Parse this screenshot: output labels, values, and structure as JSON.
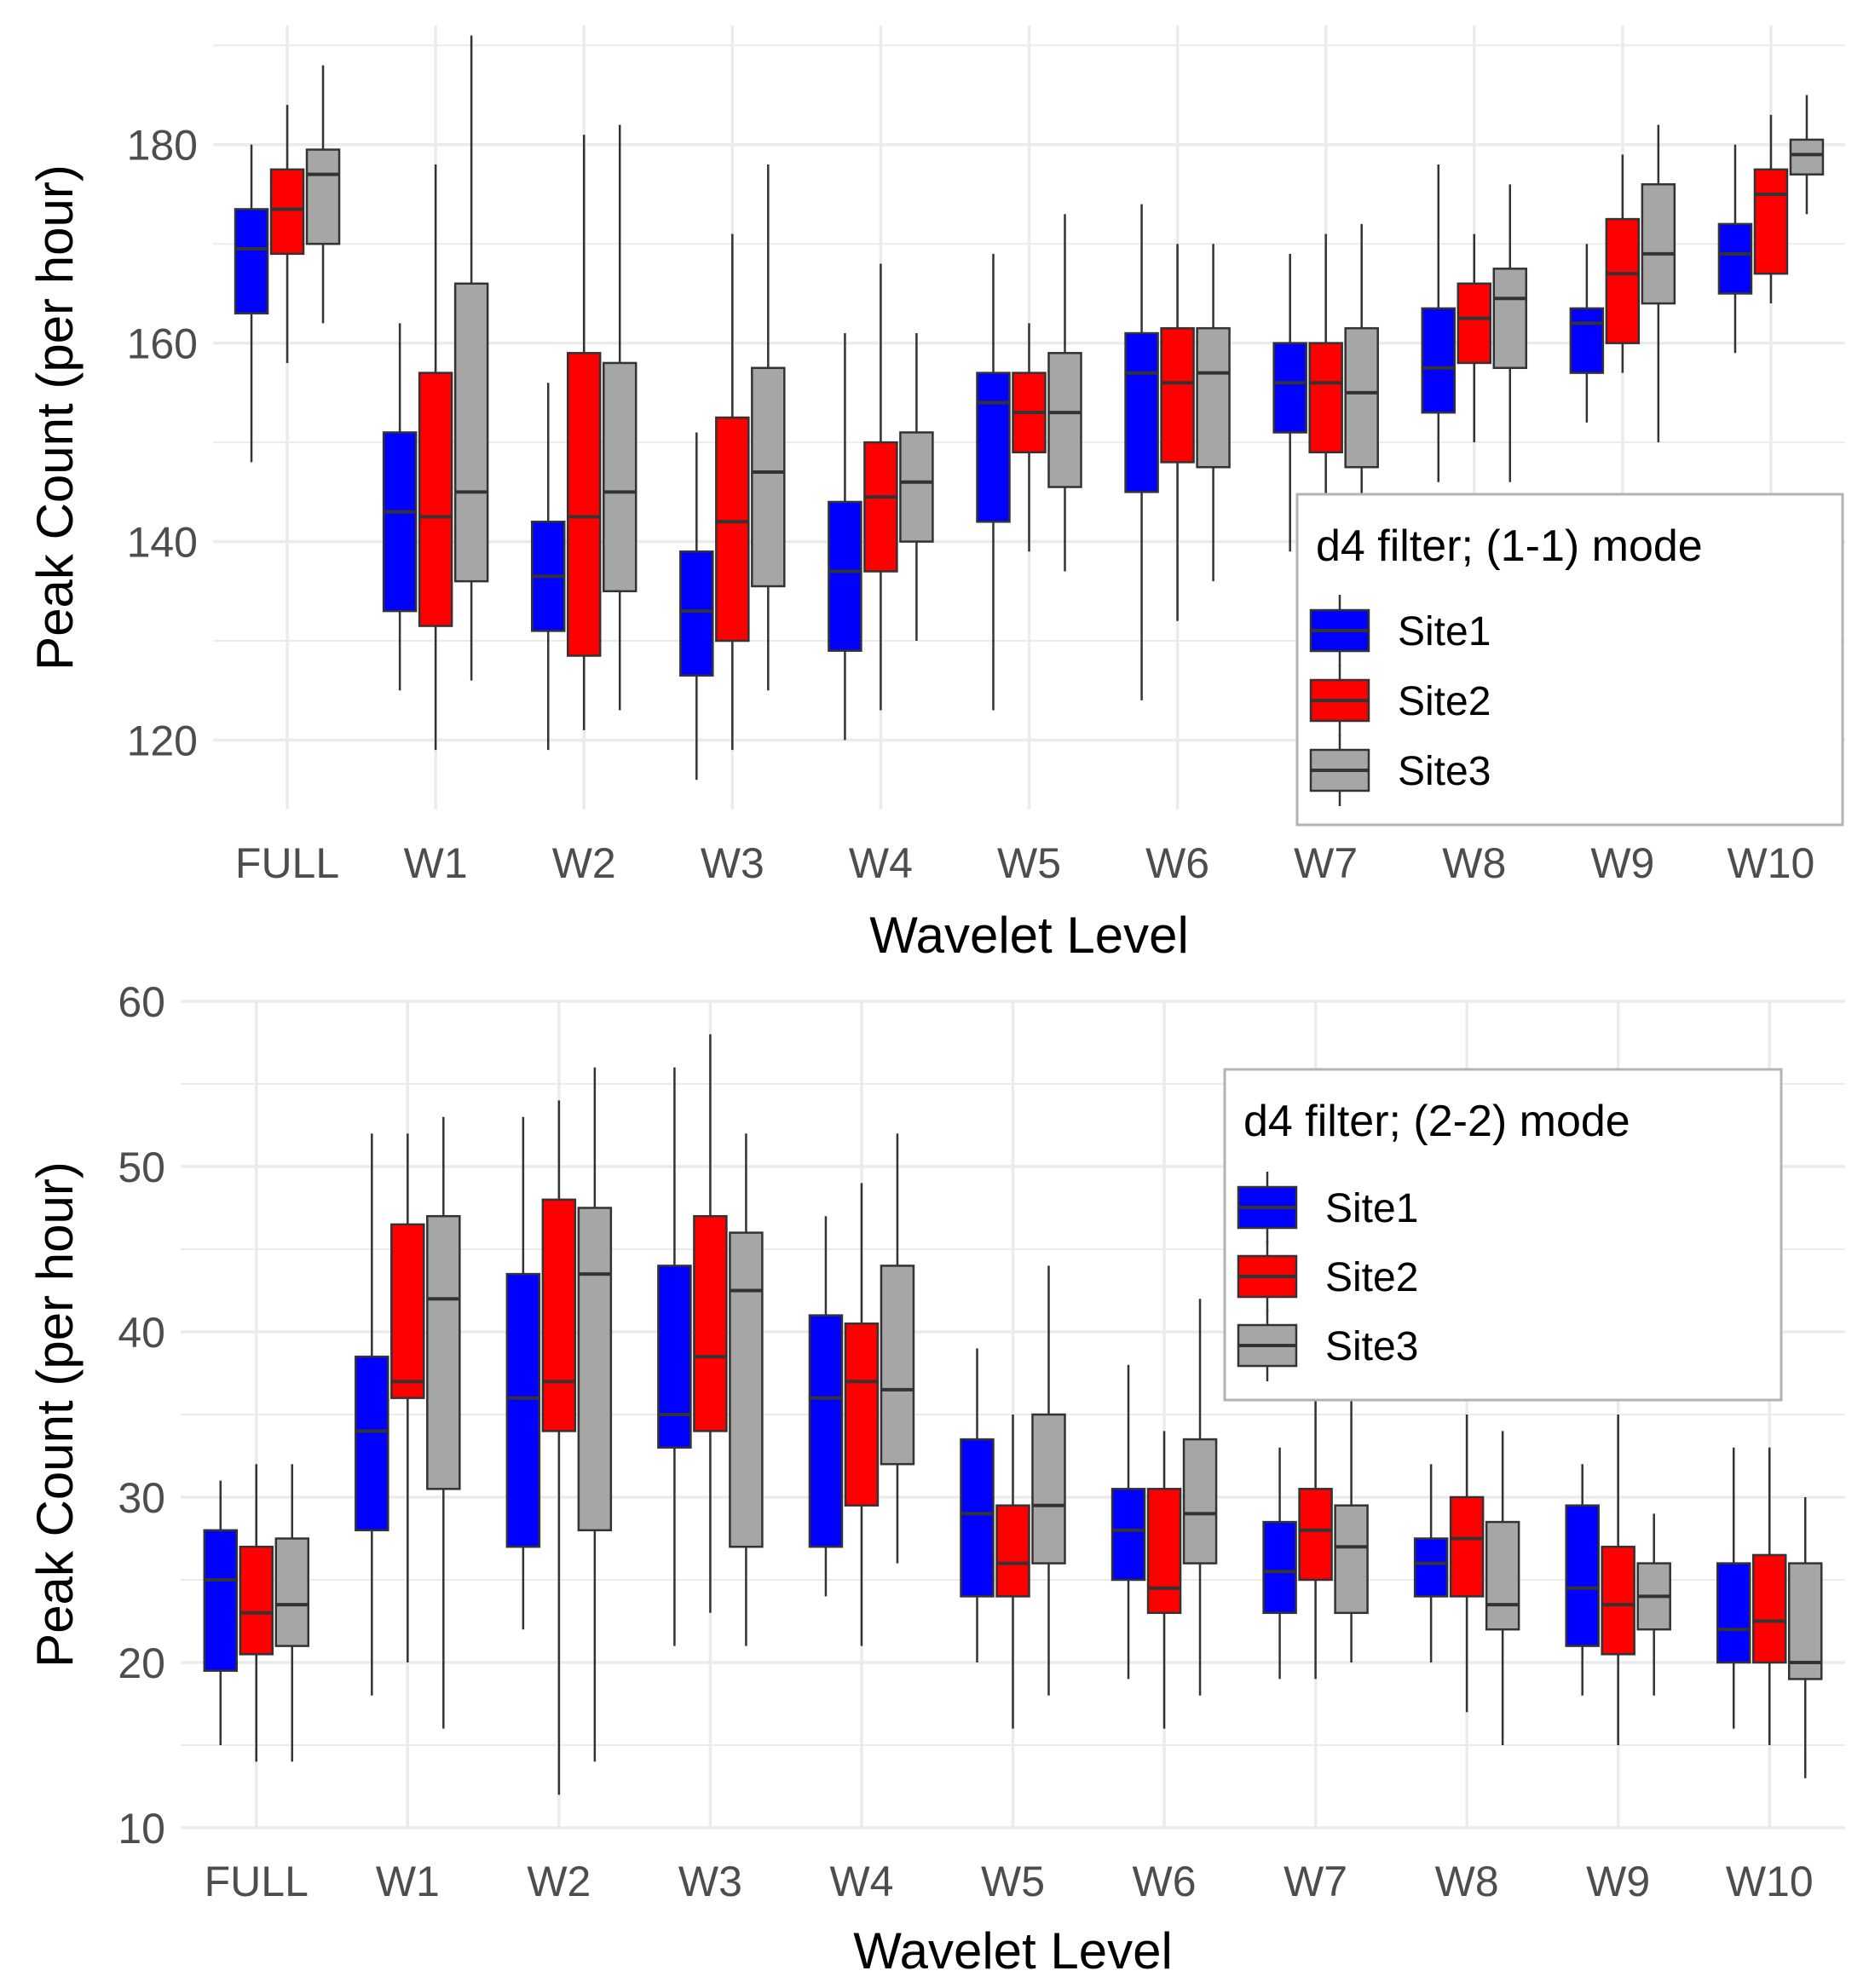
{
  "colors": {
    "Site1": "#0000ff",
    "Site2": "#ff0000",
    "Site3": "#a6a6a6",
    "grid": "#ebebeb",
    "median": "#333333",
    "whisker": "#333333"
  },
  "chart_data": [
    {
      "type": "box",
      "xlabel": "Wavelet Level",
      "ylabel": "Peak Count (per hour)",
      "ylim": [
        113,
        192
      ],
      "yticks": [
        120,
        140,
        160,
        180
      ],
      "grid": true,
      "legend_title": "d4 filter; (1-1) mode",
      "legend_position": "right",
      "categories": [
        "FULL",
        "W1",
        "W2",
        "W3",
        "W4",
        "W5",
        "W6",
        "W7",
        "W8",
        "W9",
        "W10"
      ],
      "series": [
        {
          "name": "Site1",
          "boxes": [
            {
              "min": 148,
              "q1": 163,
              "median": 169.5,
              "q3": 173.5,
              "max": 180
            },
            {
              "min": 125,
              "q1": 133,
              "median": 143,
              "q3": 151,
              "max": 162
            },
            {
              "min": 119,
              "q1": 131,
              "median": 136.5,
              "q3": 142,
              "max": 156
            },
            {
              "min": 116,
              "q1": 126.5,
              "median": 133,
              "q3": 139,
              "max": 151
            },
            {
              "min": 120,
              "q1": 129,
              "median": 137,
              "q3": 144,
              "max": 161
            },
            {
              "min": 123,
              "q1": 142,
              "median": 154,
              "q3": 157,
              "max": 169
            },
            {
              "min": 124,
              "q1": 145,
              "median": 157,
              "q3": 161,
              "max": 174
            },
            {
              "min": 139,
              "q1": 151,
              "median": 156,
              "q3": 160,
              "max": 169
            },
            {
              "min": 146,
              "q1": 153,
              "median": 157.5,
              "q3": 163.5,
              "max": 178
            },
            {
              "min": 152,
              "q1": 157,
              "median": 162,
              "q3": 163.5,
              "max": 170
            },
            {
              "min": 159,
              "q1": 165,
              "median": 169,
              "q3": 172,
              "max": 180
            }
          ]
        },
        {
          "name": "Site2",
          "boxes": [
            {
              "min": 158,
              "q1": 169,
              "median": 173.5,
              "q3": 177.5,
              "max": 184
            },
            {
              "min": 119,
              "q1": 131.5,
              "median": 142.5,
              "q3": 157,
              "max": 178
            },
            {
              "min": 121,
              "q1": 128.5,
              "median": 142.5,
              "q3": 159,
              "max": 181
            },
            {
              "min": 119,
              "q1": 130,
              "median": 142,
              "q3": 152.5,
              "max": 171
            },
            {
              "min": 123,
              "q1": 137,
              "median": 144.5,
              "q3": 150,
              "max": 168
            },
            {
              "min": 139,
              "q1": 149,
              "median": 153,
              "q3": 157,
              "max": 162
            },
            {
              "min": 132,
              "q1": 148,
              "median": 156,
              "q3": 161.5,
              "max": 170
            },
            {
              "min": 141,
              "q1": 149,
              "median": 156,
              "q3": 160,
              "max": 171
            },
            {
              "min": 150,
              "q1": 158,
              "median": 162.5,
              "q3": 166,
              "max": 171
            },
            {
              "min": 157,
              "q1": 160,
              "median": 167,
              "q3": 172.5,
              "max": 179
            },
            {
              "min": 164,
              "q1": 167,
              "median": 175,
              "q3": 177.5,
              "max": 183
            }
          ]
        },
        {
          "name": "Site3",
          "boxes": [
            {
              "min": 162,
              "q1": 170,
              "median": 177,
              "q3": 179.5,
              "max": 188
            },
            {
              "min": 126,
              "q1": 136,
              "median": 145,
              "q3": 166,
              "max": 191
            },
            {
              "min": 123,
              "q1": 135,
              "median": 145,
              "q3": 158,
              "max": 182
            },
            {
              "min": 125,
              "q1": 135.5,
              "median": 147,
              "q3": 157.5,
              "max": 178
            },
            {
              "min": 130,
              "q1": 140,
              "median": 146,
              "q3": 151,
              "max": 161
            },
            {
              "min": 137,
              "q1": 145.5,
              "median": 153,
              "q3": 159,
              "max": 173
            },
            {
              "min": 136,
              "q1": 147.5,
              "median": 157,
              "q3": 161.5,
              "max": 170
            },
            {
              "min": 140,
              "q1": 147.5,
              "median": 155,
              "q3": 161.5,
              "max": 172
            },
            {
              "min": 146,
              "q1": 157.5,
              "median": 164.5,
              "q3": 167.5,
              "max": 176
            },
            {
              "min": 150,
              "q1": 164,
              "median": 169,
              "q3": 176,
              "max": 182
            },
            {
              "min": 173,
              "q1": 177,
              "median": 179,
              "q3": 180.5,
              "max": 185
            }
          ]
        }
      ]
    },
    {
      "type": "box",
      "xlabel": "Wavelet Level",
      "ylabel": "Peak Count (per hour)",
      "ylim": [
        10,
        60
      ],
      "yticks": [
        10,
        20,
        30,
        40,
        50,
        60
      ],
      "grid": true,
      "legend_title": "d4 filter; (2-2) mode",
      "legend_position": "top-right",
      "categories": [
        "FULL",
        "W1",
        "W2",
        "W3",
        "W4",
        "W5",
        "W6",
        "W7",
        "W8",
        "W9",
        "W10"
      ],
      "series": [
        {
          "name": "Site1",
          "boxes": [
            {
              "min": 15,
              "q1": 19.5,
              "median": 25,
              "q3": 28,
              "max": 31
            },
            {
              "min": 18,
              "q1": 28,
              "median": 34,
              "q3": 38.5,
              "max": 52
            },
            {
              "min": 22,
              "q1": 27,
              "median": 36,
              "q3": 43.5,
              "max": 53
            },
            {
              "min": 21,
              "q1": 33,
              "median": 35,
              "q3": 44,
              "max": 56
            },
            {
              "min": 24,
              "q1": 27,
              "median": 36,
              "q3": 41,
              "max": 47
            },
            {
              "min": 20,
              "q1": 24,
              "median": 29,
              "q3": 33.5,
              "max": 39
            },
            {
              "min": 19,
              "q1": 25,
              "median": 28,
              "q3": 30.5,
              "max": 38
            },
            {
              "min": 19,
              "q1": 23,
              "median": 25.5,
              "q3": 28.5,
              "max": 33
            },
            {
              "min": 20,
              "q1": 24,
              "median": 26,
              "q3": 27.5,
              "max": 32
            },
            {
              "min": 18,
              "q1": 21,
              "median": 24.5,
              "q3": 29.5,
              "max": 32
            },
            {
              "min": 16,
              "q1": 20,
              "median": 22,
              "q3": 26,
              "max": 33
            }
          ]
        },
        {
          "name": "Site2",
          "boxes": [
            {
              "min": 14,
              "q1": 20.5,
              "median": 23,
              "q3": 27,
              "max": 32
            },
            {
              "min": 20,
              "q1": 36,
              "median": 37,
              "q3": 46.5,
              "max": 52
            },
            {
              "min": 12,
              "q1": 34,
              "median": 37,
              "q3": 48,
              "max": 54
            },
            {
              "min": 23,
              "q1": 34,
              "median": 38.5,
              "q3": 47,
              "max": 58
            },
            {
              "min": 21,
              "q1": 29.5,
              "median": 37,
              "q3": 40.5,
              "max": 49
            },
            {
              "min": 16,
              "q1": 24,
              "median": 26,
              "q3": 29.5,
              "max": 35
            },
            {
              "min": 16,
              "q1": 23,
              "median": 24.5,
              "q3": 30.5,
              "max": 34
            },
            {
              "min": 19,
              "q1": 25,
              "median": 28,
              "q3": 30.5,
              "max": 38
            },
            {
              "min": 17,
              "q1": 24,
              "median": 27.5,
              "q3": 30,
              "max": 35
            },
            {
              "min": 15,
              "q1": 20.5,
              "median": 23.5,
              "q3": 27,
              "max": 35
            },
            {
              "min": 15,
              "q1": 20,
              "median": 22.5,
              "q3": 26.5,
              "max": 33
            }
          ]
        },
        {
          "name": "Site3",
          "boxes": [
            {
              "min": 14,
              "q1": 21,
              "median": 23.5,
              "q3": 27.5,
              "max": 32
            },
            {
              "min": 16,
              "q1": 30.5,
              "median": 42,
              "q3": 47,
              "max": 53
            },
            {
              "min": 14,
              "q1": 28,
              "median": 43.5,
              "q3": 47.5,
              "max": 56
            },
            {
              "min": 21,
              "q1": 27,
              "median": 42.5,
              "q3": 46,
              "max": 52
            },
            {
              "min": 26,
              "q1": 32,
              "median": 36.5,
              "q3": 44,
              "max": 52
            },
            {
              "min": 18,
              "q1": 26,
              "median": 29.5,
              "q3": 35,
              "max": 44
            },
            {
              "min": 18,
              "q1": 26,
              "median": 29,
              "q3": 33.5,
              "max": 42
            },
            {
              "min": 20,
              "q1": 23,
              "median": 27,
              "q3": 29.5,
              "max": 37
            },
            {
              "min": 15,
              "q1": 22,
              "median": 23.5,
              "q3": 28.5,
              "max": 34
            },
            {
              "min": 18,
              "q1": 22,
              "median": 24,
              "q3": 26,
              "max": 29
            },
            {
              "min": 13,
              "q1": 19,
              "median": 20,
              "q3": 26,
              "max": 30
            }
          ]
        }
      ]
    }
  ]
}
